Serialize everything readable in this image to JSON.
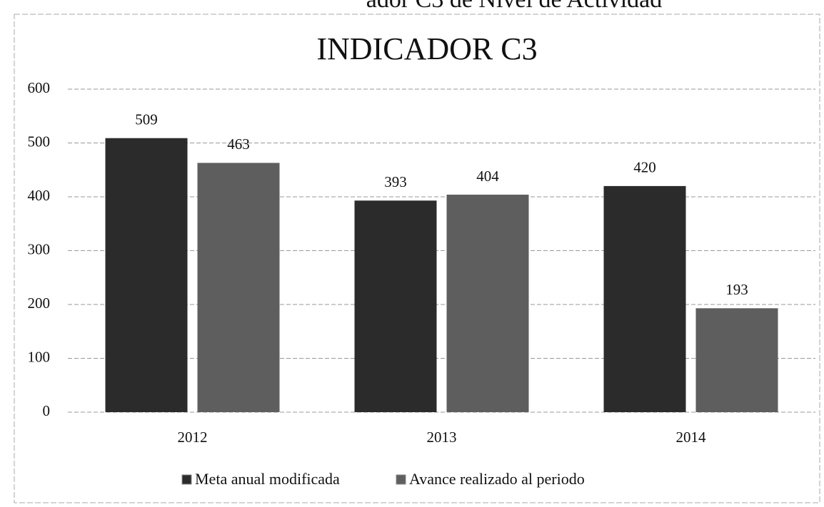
{
  "header": "ador C3 de Nivel de Actividad",
  "chart_data": {
    "type": "bar",
    "title": "INDICADOR C3",
    "categories": [
      "2012",
      "2013",
      "2014"
    ],
    "series": [
      {
        "name": "Meta anual modificada",
        "color": "#2b2b2b",
        "values": [
          509,
          393,
          420
        ]
      },
      {
        "name": "Avance realizado al periodo",
        "color": "#5e5e5e",
        "values": [
          463,
          404,
          193
        ]
      }
    ],
    "ylim": [
      0,
      600
    ],
    "yticks": [
      0,
      100,
      200,
      300,
      400,
      500,
      600
    ],
    "grid": true,
    "legend": "bottom"
  }
}
